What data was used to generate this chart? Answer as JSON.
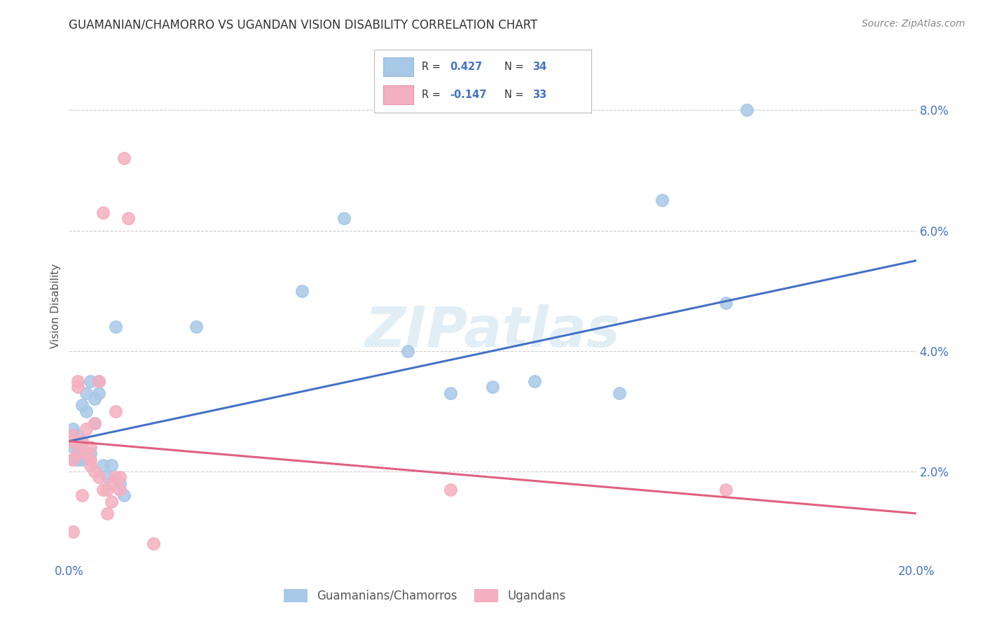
{
  "title": "GUAMANIAN/CHAMORRO VS UGANDAN VISION DISABILITY CORRELATION CHART",
  "source": "Source: ZipAtlas.com",
  "ylabel": "Vision Disability",
  "xlim": [
    0.0,
    0.2
  ],
  "ylim": [
    0.005,
    0.09
  ],
  "xticks": [
    0.0,
    0.05,
    0.1,
    0.15,
    0.2
  ],
  "xtick_labels": [
    "0.0%",
    "",
    "",
    "",
    "20.0%"
  ],
  "yticks": [
    0.02,
    0.04,
    0.06,
    0.08
  ],
  "ytick_labels": [
    "2.0%",
    "4.0%",
    "6.0%",
    "8.0%"
  ],
  "blue_color": "#a8c8e8",
  "pink_color": "#f4b0c0",
  "blue_line_color": "#4472c4",
  "pink_line_color": "#e06080",
  "legend_label_blue_display": "Guamanians/Chamorros",
  "legend_label_pink_display": "Ugandans",
  "watermark": "ZIPatlas",
  "blue_x": [
    0.001,
    0.001,
    0.001,
    0.002,
    0.002,
    0.002,
    0.003,
    0.003,
    0.003,
    0.004,
    0.004,
    0.005,
    0.005,
    0.006,
    0.006,
    0.007,
    0.007,
    0.008,
    0.009,
    0.01,
    0.011,
    0.012,
    0.013,
    0.03,
    0.055,
    0.065,
    0.08,
    0.09,
    0.1,
    0.11,
    0.13,
    0.14,
    0.155,
    0.16
  ],
  "blue_y": [
    0.027,
    0.024,
    0.022,
    0.026,
    0.023,
    0.022,
    0.031,
    0.025,
    0.022,
    0.033,
    0.03,
    0.035,
    0.023,
    0.032,
    0.028,
    0.035,
    0.033,
    0.021,
    0.019,
    0.021,
    0.044,
    0.018,
    0.016,
    0.044,
    0.05,
    0.062,
    0.04,
    0.033,
    0.034,
    0.035,
    0.033,
    0.065,
    0.048,
    0.08
  ],
  "pink_x": [
    0.001,
    0.001,
    0.001,
    0.001,
    0.002,
    0.002,
    0.002,
    0.003,
    0.003,
    0.004,
    0.004,
    0.005,
    0.005,
    0.005,
    0.006,
    0.006,
    0.007,
    0.007,
    0.008,
    0.008,
    0.009,
    0.009,
    0.01,
    0.01,
    0.011,
    0.011,
    0.012,
    0.012,
    0.013,
    0.014,
    0.09,
    0.155,
    0.02
  ],
  "pink_y": [
    0.026,
    0.025,
    0.022,
    0.01,
    0.023,
    0.035,
    0.034,
    0.025,
    0.016,
    0.023,
    0.027,
    0.021,
    0.024,
    0.022,
    0.02,
    0.028,
    0.035,
    0.019,
    0.017,
    0.063,
    0.017,
    0.013,
    0.015,
    0.018,
    0.019,
    0.03,
    0.019,
    0.017,
    0.072,
    0.062,
    0.017,
    0.017,
    0.008
  ],
  "background_color": "#ffffff",
  "grid_color": "#cccccc"
}
